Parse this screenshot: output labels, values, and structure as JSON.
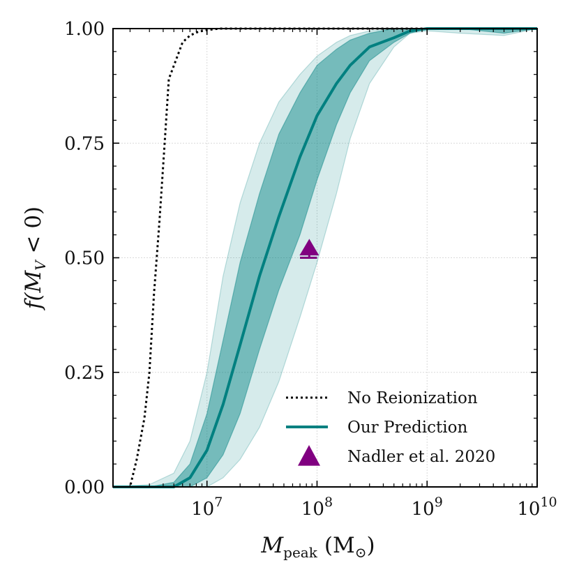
{
  "chart_data": {
    "type": "line",
    "xscale": "log",
    "xlim": [
      1400000.0,
      10000000000.0
    ],
    "ylim": [
      0,
      1
    ],
    "xlabel": "M",
    "xlabel_sub": "peak",
    "xlabel_unit": "(M",
    "xlabel_unit_sub": "⊙",
    "xlabel_unit_close": ")",
    "ylabel": "f(M",
    "ylabel_sub": "V",
    "ylabel_rest": " < 0)",
    "yticks": [
      {
        "value": 0.0,
        "label": "0.00"
      },
      {
        "value": 0.25,
        "label": "0.25"
      },
      {
        "value": 0.5,
        "label": "0.50"
      },
      {
        "value": 0.75,
        "label": "0.75"
      },
      {
        "value": 1.0,
        "label": "1.00"
      }
    ],
    "xticks": [
      {
        "value": 10000000.0,
        "base": "10",
        "exp": "7"
      },
      {
        "value": 100000000.0,
        "base": "10",
        "exp": "8"
      },
      {
        "value": 1000000000.0,
        "base": "10",
        "exp": "9"
      },
      {
        "value": 10000000000.0,
        "base": "10",
        "exp": "10"
      }
    ],
    "grid": true,
    "legend": {
      "position": "lower-right",
      "entries": [
        {
          "label": "No Reionization",
          "style": "dotted",
          "color": "#000000"
        },
        {
          "label": "Our Prediction",
          "style": "solid",
          "color": "#008080"
        },
        {
          "label": "Nadler et al. 2020",
          "style": "triangle",
          "color": "#800080"
        }
      ]
    },
    "series": [
      {
        "name": "No Reionization",
        "color": "#000000",
        "style": "dotted",
        "x": [
          1400000.0,
          1700000.0,
          2000000.0,
          2300000.0,
          2700000.0,
          3000000.0,
          3300000.0,
          3700000.0,
          4100000.0,
          4500000.0,
          5200000.0,
          6000000.0,
          7000000.0,
          8300000.0,
          10000000.0,
          13000000.0,
          20000000.0,
          50000000.0,
          100000000.0,
          1000000000.0,
          10000000000.0
        ],
        "y": [
          0.0,
          0.0,
          0.0,
          0.06,
          0.15,
          0.25,
          0.42,
          0.58,
          0.74,
          0.89,
          0.93,
          0.97,
          0.985,
          0.993,
          0.997,
          1.0,
          1.0,
          1.0,
          1.0,
          1.0,
          1.0
        ]
      },
      {
        "name": "Our Prediction",
        "color": "#008080",
        "style": "solid",
        "x": [
          1400000.0,
          3000000.0,
          5000000.0,
          7000000.0,
          10000000.0,
          14000000.0,
          20000000.0,
          30000000.0,
          45000000.0,
          70000000.0,
          100000000.0,
          150000000.0,
          200000000.0,
          300000000.0,
          500000000.0,
          700000000.0,
          1000000000.0,
          2000000000.0,
          5000000000.0,
          10000000000.0
        ],
        "y": [
          0.0,
          0.0,
          0.0,
          0.02,
          0.08,
          0.18,
          0.31,
          0.46,
          0.59,
          0.72,
          0.81,
          0.88,
          0.92,
          0.96,
          0.98,
          0.995,
          1.0,
          1.0,
          1.0,
          1.0
        ]
      },
      {
        "name": "Inner band",
        "color": "#008080",
        "style": "band",
        "x": [
          1400000.0,
          3000000.0,
          5000000.0,
          7000000.0,
          10000000.0,
          14000000.0,
          20000000.0,
          30000000.0,
          45000000.0,
          70000000.0,
          100000000.0,
          150000000.0,
          200000000.0,
          300000000.0,
          500000000.0,
          700000000.0,
          1000000000.0,
          2000000000.0,
          5000000000.0,
          10000000000.0
        ],
        "lower": [
          0.0,
          0.0,
          0.0,
          0.0,
          0.02,
          0.07,
          0.16,
          0.3,
          0.43,
          0.55,
          0.67,
          0.79,
          0.86,
          0.93,
          0.97,
          0.99,
          1.0,
          1.0,
          0.99,
          1.0
        ],
        "upper": [
          0.0,
          0.0,
          0.01,
          0.05,
          0.16,
          0.32,
          0.49,
          0.64,
          0.77,
          0.86,
          0.92,
          0.955,
          0.975,
          0.99,
          1.0,
          1.0,
          1.0,
          1.0,
          1.0,
          1.0
        ]
      },
      {
        "name": "Outer band",
        "color": "#008080",
        "style": "band-light",
        "x": [
          1400000.0,
          3000000.0,
          5000000.0,
          7000000.0,
          10000000.0,
          14000000.0,
          20000000.0,
          30000000.0,
          45000000.0,
          70000000.0,
          100000000.0,
          150000000.0,
          200000000.0,
          300000000.0,
          500000000.0,
          700000000.0,
          1000000000.0,
          2000000000.0,
          5000000000.0,
          10000000000.0
        ],
        "lower": [
          0.0,
          0.0,
          0.0,
          0.0,
          0.0,
          0.02,
          0.06,
          0.13,
          0.23,
          0.37,
          0.49,
          0.64,
          0.76,
          0.88,
          0.96,
          0.99,
          0.995,
          0.99,
          0.985,
          1.0
        ],
        "upper": [
          0.0,
          0.005,
          0.03,
          0.1,
          0.25,
          0.46,
          0.62,
          0.75,
          0.84,
          0.9,
          0.94,
          0.97,
          0.985,
          0.995,
          1.0,
          1.0,
          1.0,
          1.0,
          1.0,
          1.0
        ]
      }
    ],
    "points": [
      {
        "name": "Nadler et al. 2020",
        "x": 85000000.0,
        "y": 0.52,
        "marker": "triangle-up",
        "lower_limit_bar": true,
        "bar_x_range": [
          70000000.0,
          100000000.0
        ],
        "bar_y": 0.5,
        "color": "#800080"
      }
    ]
  }
}
